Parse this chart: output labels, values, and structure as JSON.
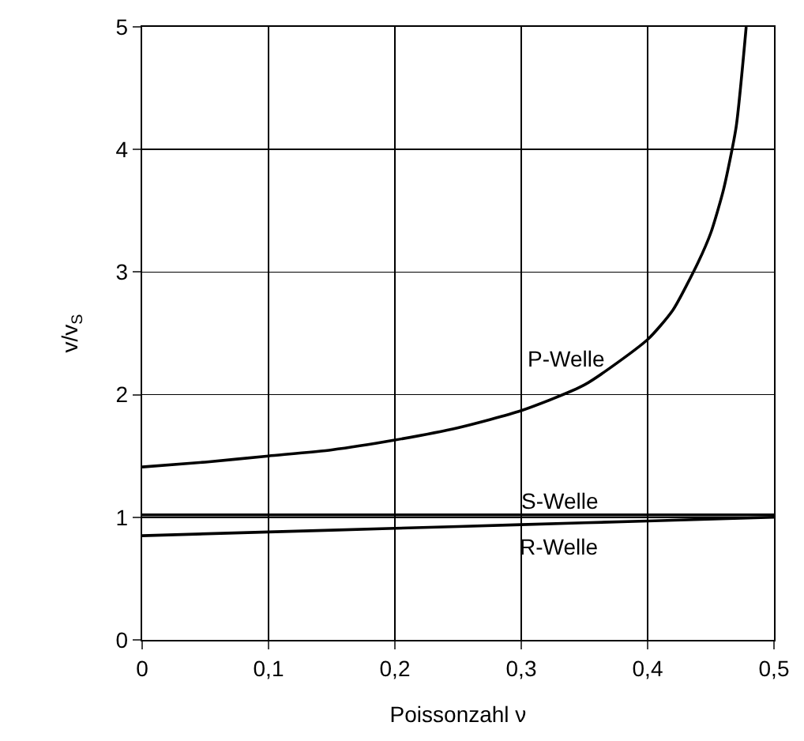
{
  "chart_data": {
    "type": "line",
    "xlabel": "Poissonzahl ν",
    "ylabel": "v/v$_{S}$",
    "xlim": [
      0,
      0.5
    ],
    "ylim": [
      0,
      5
    ],
    "xticks": [
      {
        "value": 0,
        "label": "0"
      },
      {
        "value": 0.1,
        "label": "0,1"
      },
      {
        "value": 0.2,
        "label": "0,2"
      },
      {
        "value": 0.3,
        "label": "0,3"
      },
      {
        "value": 0.4,
        "label": "0,4"
      },
      {
        "value": 0.5,
        "label": "0,5"
      }
    ],
    "yticks": [
      0,
      1,
      2,
      3,
      4,
      5
    ],
    "grid": true,
    "legend": false,
    "marker": "none",
    "line_style": "solid",
    "series": [
      {
        "name": "P-Welle",
        "color": "#000000",
        "x": [
          0,
          0.05,
          0.1,
          0.15,
          0.2,
          0.25,
          0.3,
          0.35,
          0.4,
          0.42,
          0.44,
          0.45,
          0.46,
          0.47,
          0.478
        ],
        "values": [
          1.41,
          1.45,
          1.5,
          1.55,
          1.63,
          1.73,
          1.87,
          2.08,
          2.45,
          2.69,
          3.08,
          3.32,
          3.67,
          4.18,
          5
        ]
      },
      {
        "name": "S-Welle",
        "color": "#000000",
        "x": [
          0,
          0.5
        ],
        "values": [
          1.02,
          1.02
        ]
      },
      {
        "name": "R-Welle",
        "color": "#000000",
        "x": [
          0,
          0.1,
          0.2,
          0.3,
          0.4,
          0.5
        ],
        "values": [
          0.85,
          0.88,
          0.91,
          0.94,
          0.97,
          1.0
        ]
      }
    ]
  }
}
